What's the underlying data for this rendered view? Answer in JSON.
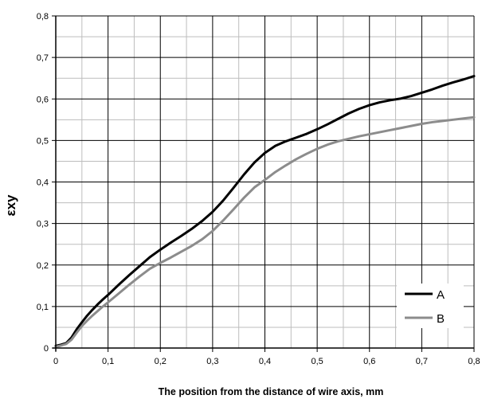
{
  "chart_data": {
    "type": "line",
    "xlabel": "The position from the distance of wire axis, mm",
    "ylabel": "εxy",
    "xlim": [
      0,
      0.8
    ],
    "ylim": [
      0,
      0.8
    ],
    "x_major_ticks": [
      0,
      0.1,
      0.2,
      0.3,
      0.4,
      0.5,
      0.6,
      0.7,
      0.8
    ],
    "x_tick_labels": [
      "0",
      "0,1",
      "0,2",
      "0,3",
      "0,4",
      "0,5",
      "0,6",
      "0,7",
      "0,8"
    ],
    "y_major_ticks": [
      0,
      0.1,
      0.2,
      0.3,
      0.4,
      0.5,
      0.6,
      0.7,
      0.8
    ],
    "y_tick_labels": [
      "0",
      "0,1",
      "0,2",
      "0,3",
      "0,4",
      "0,5",
      "0,6",
      "0,7",
      "0,8"
    ],
    "x_minor_step": 0.05,
    "y_minor_step": 0.05,
    "grid": true,
    "legend_position": "bottom-right",
    "series": [
      {
        "name": "A",
        "color": "#000000",
        "points": [
          [
            0,
            0.005
          ],
          [
            0.01,
            0.008
          ],
          [
            0.02,
            0.012
          ],
          [
            0.03,
            0.025
          ],
          [
            0.04,
            0.045
          ],
          [
            0.05,
            0.062
          ],
          [
            0.06,
            0.078
          ],
          [
            0.07,
            0.092
          ],
          [
            0.08,
            0.105
          ],
          [
            0.09,
            0.117
          ],
          [
            0.1,
            0.128
          ],
          [
            0.12,
            0.152
          ],
          [
            0.14,
            0.175
          ],
          [
            0.16,
            0.197
          ],
          [
            0.18,
            0.219
          ],
          [
            0.2,
            0.237
          ],
          [
            0.22,
            0.254
          ],
          [
            0.24,
            0.27
          ],
          [
            0.26,
            0.287
          ],
          [
            0.28,
            0.306
          ],
          [
            0.3,
            0.328
          ],
          [
            0.32,
            0.355
          ],
          [
            0.34,
            0.386
          ],
          [
            0.36,
            0.418
          ],
          [
            0.38,
            0.447
          ],
          [
            0.4,
            0.47
          ],
          [
            0.42,
            0.487
          ],
          [
            0.44,
            0.498
          ],
          [
            0.46,
            0.507
          ],
          [
            0.48,
            0.516
          ],
          [
            0.5,
            0.527
          ],
          [
            0.52,
            0.539
          ],
          [
            0.54,
            0.552
          ],
          [
            0.56,
            0.565
          ],
          [
            0.58,
            0.576
          ],
          [
            0.6,
            0.585
          ],
          [
            0.62,
            0.592
          ],
          [
            0.64,
            0.597
          ],
          [
            0.66,
            0.601
          ],
          [
            0.68,
            0.607
          ],
          [
            0.7,
            0.615
          ],
          [
            0.72,
            0.623
          ],
          [
            0.74,
            0.632
          ],
          [
            0.76,
            0.64
          ],
          [
            0.78,
            0.647
          ],
          [
            0.8,
            0.655
          ]
        ]
      },
      {
        "name": "B",
        "color": "#8c8c8c",
        "points": [
          [
            0,
            0.003
          ],
          [
            0.01,
            0.006
          ],
          [
            0.02,
            0.01
          ],
          [
            0.03,
            0.02
          ],
          [
            0.04,
            0.037
          ],
          [
            0.05,
            0.053
          ],
          [
            0.06,
            0.066
          ],
          [
            0.07,
            0.078
          ],
          [
            0.08,
            0.089
          ],
          [
            0.09,
            0.1
          ],
          [
            0.1,
            0.11
          ],
          [
            0.12,
            0.131
          ],
          [
            0.14,
            0.152
          ],
          [
            0.16,
            0.172
          ],
          [
            0.18,
            0.191
          ],
          [
            0.2,
            0.205
          ],
          [
            0.22,
            0.218
          ],
          [
            0.24,
            0.232
          ],
          [
            0.26,
            0.246
          ],
          [
            0.28,
            0.262
          ],
          [
            0.3,
            0.282
          ],
          [
            0.32,
            0.307
          ],
          [
            0.34,
            0.334
          ],
          [
            0.36,
            0.362
          ],
          [
            0.38,
            0.387
          ],
          [
            0.4,
            0.405
          ],
          [
            0.42,
            0.424
          ],
          [
            0.44,
            0.44
          ],
          [
            0.46,
            0.455
          ],
          [
            0.48,
            0.468
          ],
          [
            0.5,
            0.48
          ],
          [
            0.52,
            0.49
          ],
          [
            0.54,
            0.498
          ],
          [
            0.56,
            0.504
          ],
          [
            0.58,
            0.51
          ],
          [
            0.6,
            0.515
          ],
          [
            0.62,
            0.52
          ],
          [
            0.64,
            0.525
          ],
          [
            0.66,
            0.53
          ],
          [
            0.68,
            0.535
          ],
          [
            0.7,
            0.54
          ],
          [
            0.72,
            0.544
          ],
          [
            0.74,
            0.547
          ],
          [
            0.76,
            0.55
          ],
          [
            0.78,
            0.553
          ],
          [
            0.8,
            0.556
          ]
        ]
      }
    ]
  }
}
